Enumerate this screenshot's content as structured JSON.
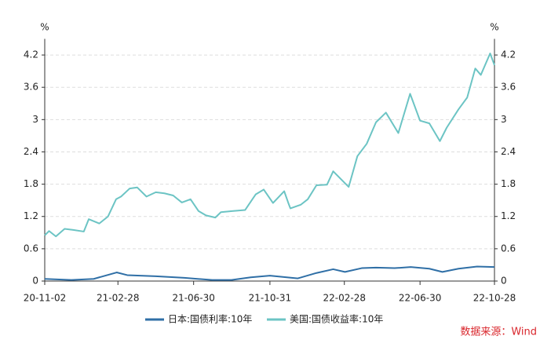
{
  "chart_data": {
    "type": "line",
    "y_label": "%",
    "y2_label": "%",
    "ylim": [
      0,
      4.5
    ],
    "yticks": [
      0,
      0.6,
      1.2,
      1.8,
      2.4,
      3,
      3.6,
      4.2
    ],
    "y2lim": [
      0,
      4.5
    ],
    "y2ticks": [
      0,
      0.6,
      1.2,
      1.8,
      2.4,
      3,
      3.6,
      4.2
    ],
    "xlim": [
      "20-11-02",
      "22-10-28"
    ],
    "xticks": [
      "20-11-02",
      "21-02-28",
      "21-06-30",
      "21-10-31",
      "22-02-28",
      "22-06-30",
      "22-10-28"
    ],
    "grid": true,
    "legend": "bottom",
    "source": "数据来源：Wind",
    "series": [
      {
        "name": "日本:国债利率:10年",
        "color": "#2f6fa6",
        "x": [
          "20-11-02",
          "20-12-15",
          "21-01-20",
          "21-02-26",
          "21-03-15",
          "21-04-30",
          "21-06-15",
          "21-07-30",
          "21-08-30",
          "21-09-30",
          "21-10-31",
          "21-12-15",
          "22-01-14",
          "22-02-10",
          "22-03-01",
          "22-03-28",
          "22-04-20",
          "22-05-20",
          "22-06-15",
          "22-07-15",
          "22-08-05",
          "22-08-31",
          "22-09-30",
          "22-10-28"
        ],
        "values": [
          0.04,
          0.02,
          0.04,
          0.16,
          0.11,
          0.09,
          0.06,
          0.02,
          0.02,
          0.07,
          0.1,
          0.05,
          0.15,
          0.22,
          0.17,
          0.24,
          0.25,
          0.24,
          0.26,
          0.23,
          0.17,
          0.23,
          0.27,
          0.26
        ]
      },
      {
        "name": "美国:国债收益率:10年",
        "color": "#6cc4c4",
        "x": [
          "20-11-02",
          "20-11-09",
          "20-11-20",
          "20-12-04",
          "20-12-18",
          "21-01-04",
          "21-01-12",
          "21-01-29",
          "21-02-12",
          "21-02-25",
          "21-03-05",
          "21-03-19",
          "21-03-31",
          "21-04-15",
          "21-04-30",
          "21-05-14",
          "21-05-28",
          "21-06-11",
          "21-06-25",
          "21-07-08",
          "21-07-20",
          "21-08-04",
          "21-08-13",
          "21-08-31",
          "21-09-21",
          "21-10-08",
          "21-10-21",
          "21-11-05",
          "21-11-23",
          "21-11-30",
          "21-12-03",
          "21-12-20",
          "21-12-31",
          "22-01-14",
          "22-01-31",
          "22-02-10",
          "22-02-28",
          "22-03-07",
          "22-03-21",
          "22-04-05",
          "22-04-20",
          "22-05-06",
          "22-05-26",
          "22-06-14",
          "22-06-30",
          "22-07-15",
          "22-08-01",
          "22-08-12",
          "22-08-31",
          "22-09-14",
          "22-09-27",
          "22-10-06",
          "22-10-21",
          "22-10-28"
        ],
        "values": [
          0.85,
          0.93,
          0.83,
          0.97,
          0.95,
          0.92,
          1.15,
          1.07,
          1.2,
          1.52,
          1.57,
          1.72,
          1.74,
          1.57,
          1.65,
          1.63,
          1.59,
          1.46,
          1.52,
          1.3,
          1.22,
          1.18,
          1.28,
          1.3,
          1.32,
          1.61,
          1.7,
          1.45,
          1.67,
          1.44,
          1.35,
          1.42,
          1.52,
          1.78,
          1.79,
          2.04,
          1.83,
          1.75,
          2.32,
          2.55,
          2.95,
          3.13,
          2.75,
          3.48,
          2.98,
          2.93,
          2.6,
          2.85,
          3.19,
          3.41,
          3.95,
          3.83,
          4.23,
          4.01
        ]
      }
    ]
  }
}
